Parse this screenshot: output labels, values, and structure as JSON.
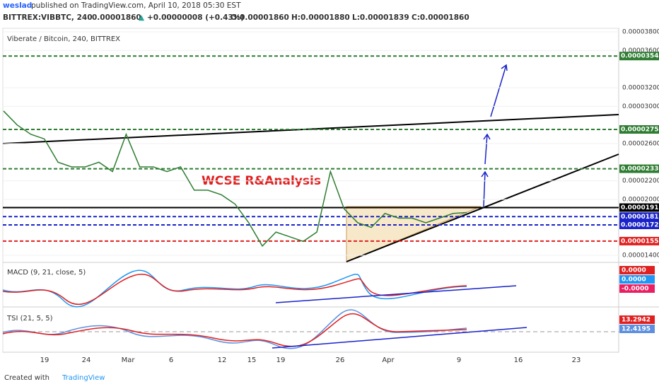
{
  "header": {
    "author": "weslad",
    "published": "published on TradingView.com, April 10, 2018 05:30 EST",
    "symbol": "BITTREX:VIBBTC, 240",
    "last": "0.00001860",
    "arrow": "▲",
    "change": "+0.00000008 (+0.43%)",
    "open": "O:0.00001860",
    "high": "H:0.00001880",
    "low": "L:0.00001839",
    "close": "C:0.00001860"
  },
  "chart": {
    "title": "Viberate / Bitcoin, 240, BITTREX",
    "annotation": "WCSE R&Analysis",
    "ylim": [
      1.332e-05,
      3.838e-05
    ],
    "yticks": [
      {
        "value": 3.8e-05,
        "label": "0.00003800"
      },
      {
        "value": 3.6e-05,
        "label": "0.00003600"
      },
      {
        "value": 3.2e-05,
        "label": "0.00003200"
      },
      {
        "value": 3e-05,
        "label": "0.00003000"
      },
      {
        "value": 2.6e-05,
        "label": "0.00002600"
      },
      {
        "value": 2.2e-05,
        "label": "0.00002200"
      },
      {
        "value": 2e-05,
        "label": "0.00002000"
      },
      {
        "value": 1.4e-05,
        "label": "0.00001400"
      }
    ],
    "levels": [
      {
        "value": 3.54e-05,
        "label": "0.00003540",
        "color": "#2e7d32",
        "dash": true
      },
      {
        "value": 2.752e-05,
        "label": "0.00002752",
        "color": "#2e7d32",
        "dash": true
      },
      {
        "value": 2.33e-05,
        "label": "0.00002330",
        "color": "#2e7d32",
        "dash": true
      },
      {
        "value": 1.913e-05,
        "label": "0.00001913",
        "color": "#000000",
        "dash": false
      },
      {
        "value": 1.816e-05,
        "label": "0.00001816",
        "color": "#1a23c9",
        "dash": true
      },
      {
        "value": 1.727e-05,
        "label": "0.00001727",
        "color": "#1a23c9",
        "dash": true
      },
      {
        "value": 1.553e-05,
        "label": "0.00001553",
        "color": "#e02020",
        "dash": true
      }
    ],
    "price": [
      2.95e-05,
      2.8e-05,
      2.7e-05,
      2.65e-05,
      2.4e-05,
      2.35e-05,
      2.35e-05,
      2.4e-05,
      2.3e-05,
      2.7e-05,
      2.35e-05,
      2.35e-05,
      2.3e-05,
      2.35e-05,
      2.1e-05,
      2.1e-05,
      2.05e-05,
      1.95e-05,
      1.75e-05,
      1.5e-05,
      1.65e-05,
      1.6e-05,
      1.55e-05,
      1.65e-05,
      2.3e-05,
      1.9e-05,
      1.75e-05,
      1.7e-05,
      1.85e-05,
      1.8e-05,
      1.8e-05,
      1.75e-05,
      1.8e-05,
      1.85e-05,
      1.86e-05
    ],
    "xlabels": [
      "19",
      "24",
      "Mar",
      "6",
      "12",
      "15",
      "19",
      "26",
      "Apr",
      "9",
      "16",
      "23"
    ]
  },
  "macd": {
    "title": "MACD (9, 21, close, 5)",
    "badges": [
      {
        "label": "0.0000",
        "color": "#e02020"
      },
      {
        "label": "0.0000",
        "color": "#2196f3"
      },
      {
        "label": "-0.0000",
        "color": "#e91e63"
      }
    ]
  },
  "tsi": {
    "title": "TSI (21, 5, 5)",
    "badges": [
      {
        "label": "13.2942",
        "color": "#e02020"
      },
      {
        "label": "12.4195",
        "color": "#5c8fe0"
      }
    ]
  },
  "footer": {
    "created": "Created with",
    "brand": "TradingView"
  }
}
